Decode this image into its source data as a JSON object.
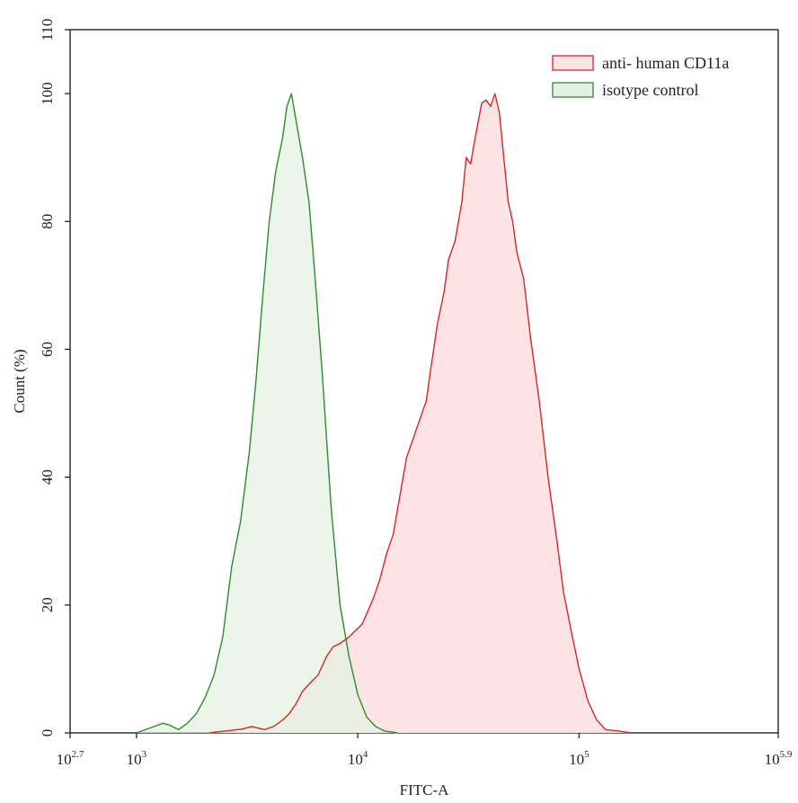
{
  "chart_data": {
    "type": "area",
    "xlabel": "FITC-A",
    "ylabel": "Count  (%)",
    "x_scale": "log10",
    "xlim": [
      2.7,
      5.9
    ],
    "ylim": [
      0,
      110
    ],
    "x_ticks": [
      {
        "exp": 2.7,
        "base": "10",
        "sup": "2.7"
      },
      {
        "exp": 3,
        "base": "10",
        "sup": "3"
      },
      {
        "exp": 4,
        "base": "10",
        "sup": "4"
      },
      {
        "exp": 5,
        "base": "10",
        "sup": "5"
      },
      {
        "exp": 5.9,
        "base": "10",
        "sup": "5.9"
      }
    ],
    "y_ticks": [
      0,
      20,
      40,
      60,
      80,
      100,
      110
    ],
    "grid": false,
    "legend_position": "top-right",
    "series": [
      {
        "name": "anti- human  CD11a",
        "stroke": "#d62728",
        "fill": "#fde3e4",
        "points": [
          [
            3.33,
            0
          ],
          [
            3.48,
            0.6
          ],
          [
            3.52,
            1.0
          ],
          [
            3.58,
            0.5
          ],
          [
            3.62,
            1.0
          ],
          [
            3.66,
            2.0
          ],
          [
            3.69,
            3.0
          ],
          [
            3.72,
            4.5
          ],
          [
            3.75,
            6.5
          ],
          [
            3.79,
            8.0
          ],
          [
            3.82,
            9.0
          ],
          [
            3.86,
            12.0
          ],
          [
            3.89,
            13.5
          ],
          [
            3.92,
            14.0
          ],
          [
            3.96,
            15.0
          ],
          [
            4.02,
            17.0
          ],
          [
            4.07,
            21.0
          ],
          [
            4.1,
            24.0
          ],
          [
            4.13,
            28.0
          ],
          [
            4.16,
            31.0
          ],
          [
            4.19,
            37.0
          ],
          [
            4.22,
            43.0
          ],
          [
            4.25,
            46.0
          ],
          [
            4.28,
            49.0
          ],
          [
            4.31,
            52.0
          ],
          [
            4.33,
            57.0
          ],
          [
            4.36,
            64.0
          ],
          [
            4.39,
            69.0
          ],
          [
            4.41,
            74.0
          ],
          [
            4.44,
            77.0
          ],
          [
            4.47,
            83.0
          ],
          [
            4.49,
            90.0
          ],
          [
            4.51,
            89.0
          ],
          [
            4.53,
            93.0
          ],
          [
            4.56,
            98.5
          ],
          [
            4.58,
            99.0
          ],
          [
            4.6,
            98.0
          ],
          [
            4.62,
            100.0
          ],
          [
            4.64,
            97.0
          ],
          [
            4.66,
            90.0
          ],
          [
            4.68,
            83.0
          ],
          [
            4.7,
            80.0
          ],
          [
            4.72,
            75.0
          ],
          [
            4.75,
            71.0
          ],
          [
            4.78,
            62.0
          ],
          [
            4.82,
            52.0
          ],
          [
            4.86,
            40.0
          ],
          [
            4.9,
            30.0
          ],
          [
            4.93,
            22.0
          ],
          [
            4.97,
            15.0
          ],
          [
            5.0,
            10.0
          ],
          [
            5.04,
            5.0
          ],
          [
            5.08,
            2.0
          ],
          [
            5.12,
            0.5
          ],
          [
            5.18,
            0.3
          ],
          [
            5.23,
            0
          ]
        ]
      },
      {
        "name": "isotype control",
        "stroke": "#2e8b2e",
        "fill": "#e4f1e2",
        "points": [
          [
            3.0,
            0
          ],
          [
            3.08,
            1.0
          ],
          [
            3.12,
            1.5
          ],
          [
            3.15,
            1.2
          ],
          [
            3.19,
            0.5
          ],
          [
            3.23,
            1.5
          ],
          [
            3.27,
            3.0
          ],
          [
            3.31,
            5.5
          ],
          [
            3.35,
            9.0
          ],
          [
            3.39,
            15.0
          ],
          [
            3.43,
            26.0
          ],
          [
            3.47,
            33.0
          ],
          [
            3.51,
            44.0
          ],
          [
            3.54,
            55.0
          ],
          [
            3.57,
            68.0
          ],
          [
            3.6,
            80.0
          ],
          [
            3.63,
            88.0
          ],
          [
            3.66,
            93.0
          ],
          [
            3.68,
            98.0
          ],
          [
            3.7,
            100.0
          ],
          [
            3.72,
            96.0
          ],
          [
            3.75,
            90.0
          ],
          [
            3.78,
            83.0
          ],
          [
            3.81,
            70.0
          ],
          [
            3.84,
            56.0
          ],
          [
            3.88,
            35.0
          ],
          [
            3.92,
            20.0
          ],
          [
            3.96,
            12.0
          ],
          [
            4.0,
            6.0
          ],
          [
            4.04,
            2.5
          ],
          [
            4.08,
            1.0
          ],
          [
            4.12,
            0.3
          ],
          [
            4.18,
            0
          ]
        ]
      }
    ]
  }
}
